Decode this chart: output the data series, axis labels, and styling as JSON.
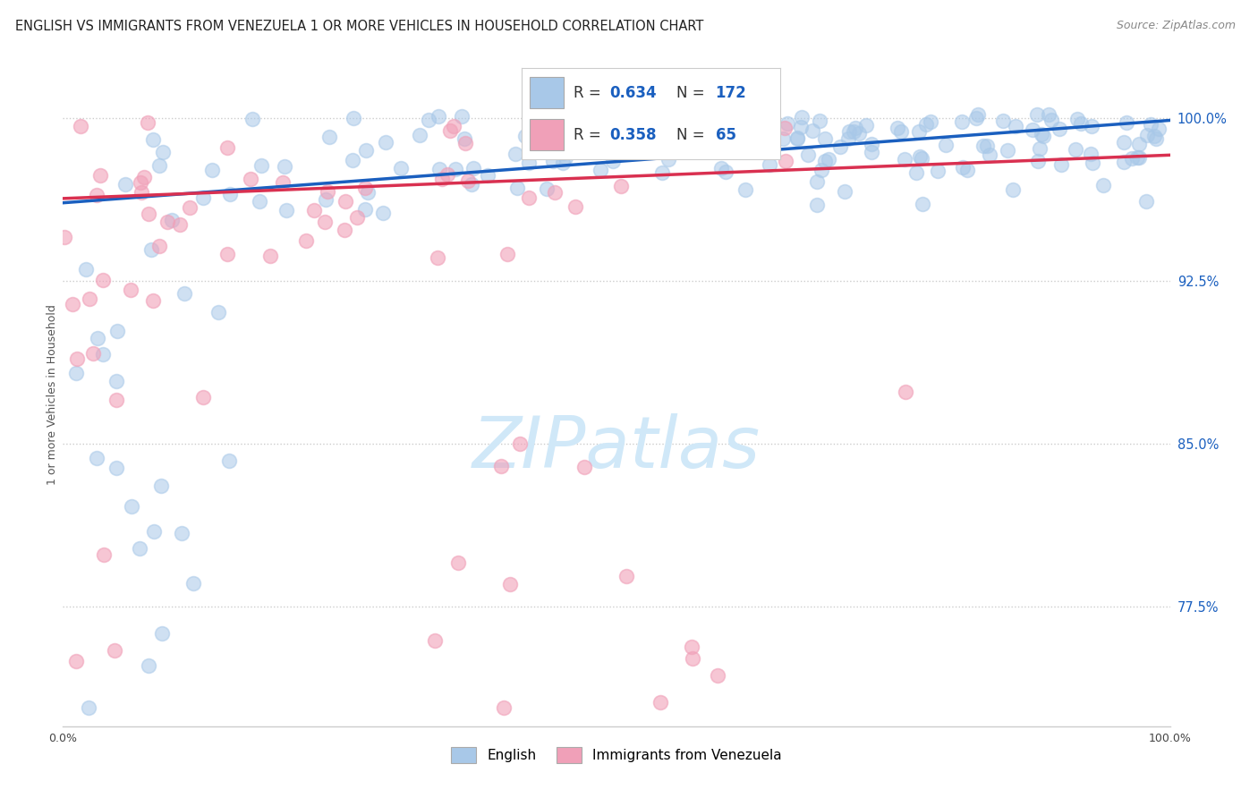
{
  "title": "ENGLISH VS IMMIGRANTS FROM VENEZUELA 1 OR MORE VEHICLES IN HOUSEHOLD CORRELATION CHART",
  "source": "Source: ZipAtlas.com",
  "ylabel": "1 or more Vehicles in Household",
  "ytick_labels": [
    "100.0%",
    "92.5%",
    "85.0%",
    "77.5%"
  ],
  "ytick_values": [
    1.0,
    0.925,
    0.85,
    0.775
  ],
  "xmin": 0.0,
  "xmax": 1.0,
  "ymin": 0.72,
  "ymax": 1.025,
  "legend_labels": [
    "English",
    "Immigrants from Venezuela"
  ],
  "english_R": 0.634,
  "english_N": 172,
  "venezuela_R": 0.358,
  "venezuela_N": 65,
  "english_color": "#a8c8e8",
  "venezuela_color": "#f0a0b8",
  "english_line_color": "#1a5fbf",
  "venezuela_line_color": "#d93050",
  "watermark_color": "#d0e8f8",
  "title_fontsize": 10.5,
  "source_fontsize": 9,
  "axis_label_fontsize": 9,
  "marker_size": 130,
  "eng_line_intercept": 0.961,
  "eng_line_slope": 0.038,
  "ven_line_intercept": 0.963,
  "ven_line_slope": 0.02
}
